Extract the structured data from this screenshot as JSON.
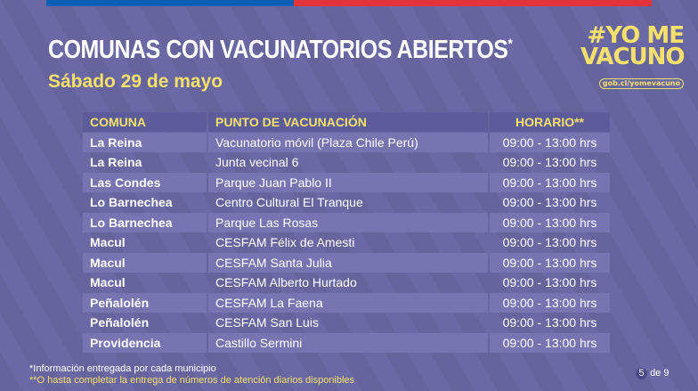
{
  "header": {
    "title": "COMUNAS CON VACUNATORIOS ABIERTOS",
    "title_mark": "*",
    "subtitle": "Sábado 29 de mayo"
  },
  "logo": {
    "line1": "#YO ME",
    "line2": "VACUNO",
    "url": "gob.cl/yomevacuno"
  },
  "colors": {
    "background": "#6a69a5",
    "accent": "#f5e06b",
    "flag_blue": "#0a5fb4",
    "flag_red": "#e4333b"
  },
  "table": {
    "headers": [
      "COMUNA",
      "PUNTO DE VACUNACIÓN",
      "HORARIO**"
    ],
    "rows": [
      [
        "La Reina",
        "Vacunatorio móvil (Plaza Chile Perú)",
        "09:00 - 13:00 hrs"
      ],
      [
        "La Reina",
        "Junta vecinal 6",
        "09:00 - 13:00 hrs"
      ],
      [
        "Las Condes",
        "Parque Juan Pablo II",
        "09:00 - 13:00 hrs"
      ],
      [
        "Lo Barnechea",
        "Centro Cultural El Tranque",
        "09:00 - 13:00 hrs"
      ],
      [
        "Lo Barnechea",
        "Parque Las Rosas",
        "09:00 - 13:00 hrs"
      ],
      [
        "Macul",
        "CESFAM Félix de Amesti",
        "09:00 - 13:00 hrs"
      ],
      [
        "Macul",
        "CESFAM Santa Julia",
        "09:00 - 13:00 hrs"
      ],
      [
        "Macul",
        "CESFAM Alberto Hurtado",
        "09:00 - 13:00 hrs"
      ],
      [
        "Peñalolén",
        "CESFAM La Faena",
        "09:00 - 13:00 hrs"
      ],
      [
        "Peñalolén",
        "CESFAM San Luis",
        "09:00 - 13:00 hrs"
      ],
      [
        "Providencia",
        "Castillo Sermini",
        "09:00 - 13:00 hrs"
      ]
    ]
  },
  "footer": {
    "note1": "*Información entregada por cada municipio",
    "note2": "**O hasta completar la entrega de números de atención diarios disponibles",
    "page_current": "5",
    "page_of": "de 9"
  }
}
